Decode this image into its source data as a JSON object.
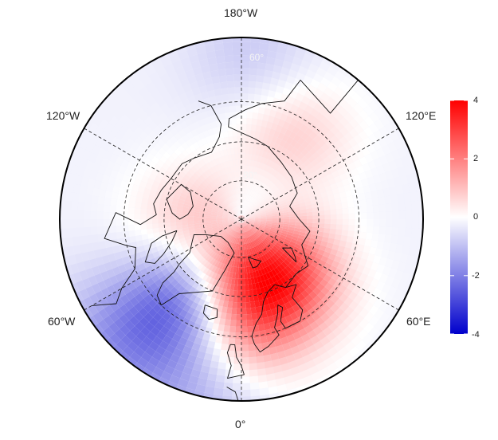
{
  "map": {
    "projection": "north polar stereographic",
    "longitude_labels": {
      "top": "180°W",
      "bottom": "0°",
      "upper_left": "120°W",
      "upper_right": "120°E",
      "lower_left": "60°W",
      "lower_right": "60°E"
    },
    "latitude_labels": [
      "60°",
      "80°"
    ],
    "graticule": "dashed"
  },
  "colorbar": {
    "min": -4,
    "max": 4,
    "ticks": [
      "4",
      "2",
      "0",
      "-2",
      "-4"
    ],
    "colors": {
      "high": "#ff0000",
      "mid": "#ffffff",
      "low": "#0000cc"
    }
  },
  "field_features": [
    {
      "label": "positive anomaly",
      "lat": 75,
      "lon": 40,
      "value": 2.6
    },
    {
      "label": "positive anomaly",
      "lat": 72,
      "lon": 15,
      "value": 2.2
    },
    {
      "label": "positive anomaly",
      "lat": 62,
      "lon": -5,
      "value": 1.8
    },
    {
      "label": "positive anomaly",
      "lat": 78,
      "lon": -80,
      "value": 1.2
    },
    {
      "label": "positive anomaly",
      "lat": 65,
      "lon": 150,
      "value": 1.0
    },
    {
      "label": "negative anomaly",
      "lat": 65,
      "lon": -30,
      "value": -2.6
    },
    {
      "label": "negative anomaly",
      "lat": 48,
      "lon": -45,
      "value": -1.3
    },
    {
      "label": "negative anomaly",
      "lat": 45,
      "lon": -10,
      "value": -1.0
    },
    {
      "label": "negative anomaly",
      "lat": 82,
      "lon": 60,
      "value": -0.9
    },
    {
      "label": "negative anomaly",
      "lat": 50,
      "lon": 175,
      "value": -0.7
    }
  ]
}
